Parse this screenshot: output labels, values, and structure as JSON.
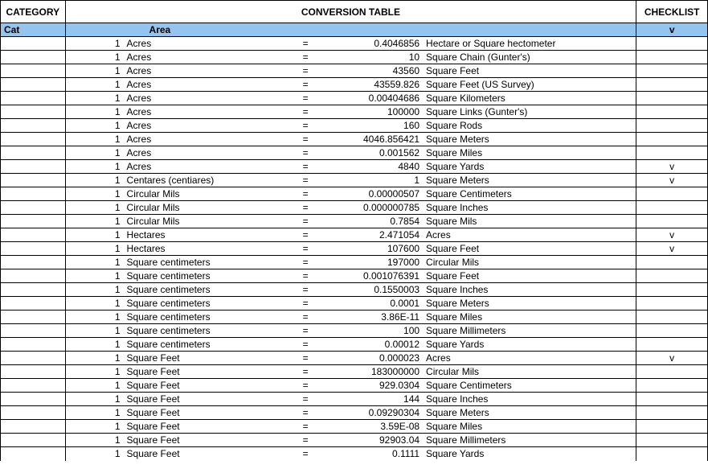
{
  "colors": {
    "header_bg": "#95c5ef",
    "border": "#000000",
    "bg": "#ffffff",
    "text": "#000000"
  },
  "header": {
    "category": "CATEGORY",
    "title": "CONVERSION TABLE",
    "checklist": "CHECKLIST"
  },
  "subheader": {
    "cat": "Cat",
    "area": "Area",
    "check": "v"
  },
  "columns": {
    "qty_width": 72,
    "from_width": 210,
    "eq_width": 30,
    "val_width": 130,
    "to_width": 264,
    "category_width": 80,
    "check_width": 88
  },
  "rows": [
    {
      "qty": "1",
      "from": "Acres",
      "eq": "=",
      "val": "0.4046856",
      "to": "Hectare or Square hectometer",
      "check": ""
    },
    {
      "qty": "1",
      "from": "Acres",
      "eq": "=",
      "val": "10",
      "to": "Square Chain (Gunter's)",
      "check": ""
    },
    {
      "qty": "1",
      "from": "Acres",
      "eq": "=",
      "val": "43560",
      "to": "Square Feet",
      "check": ""
    },
    {
      "qty": "1",
      "from": "Acres",
      "eq": "=",
      "val": "43559.826",
      "to": "Square Feet (US Survey)",
      "check": ""
    },
    {
      "qty": "1",
      "from": "Acres",
      "eq": "=",
      "val": "0.00404686",
      "to": "Square Kilometers",
      "check": ""
    },
    {
      "qty": "1",
      "from": "Acres",
      "eq": "=",
      "val": "100000",
      "to": "Square Links (Gunter's)",
      "check": ""
    },
    {
      "qty": "1",
      "from": "Acres",
      "eq": "=",
      "val": "160",
      "to": "Square Rods",
      "check": ""
    },
    {
      "qty": "1",
      "from": "Acres",
      "eq": "=",
      "val": "4046.856421",
      "to": "Square Meters",
      "check": ""
    },
    {
      "qty": "1",
      "from": "Acres",
      "eq": "=",
      "val": "0.001562",
      "to": "Square Miles",
      "check": ""
    },
    {
      "qty": "1",
      "from": "Acres",
      "eq": "=",
      "val": "4840",
      "to": "Square Yards",
      "check": "v"
    },
    {
      "qty": "1",
      "from": "Centares (centiares)",
      "eq": "=",
      "val": "1",
      "to": "Square Meters",
      "check": "v"
    },
    {
      "qty": "1",
      "from": "Circular Mils",
      "eq": "=",
      "val": "0.00000507",
      "to": "Square Centimeters",
      "check": ""
    },
    {
      "qty": "1",
      "from": "Circular Mils",
      "eq": "=",
      "val": "0.000000785",
      "to": "Square Inches",
      "check": ""
    },
    {
      "qty": "1",
      "from": "Circular Mils",
      "eq": "=",
      "val": "0.7854",
      "to": "Square Mils",
      "check": ""
    },
    {
      "qty": "1",
      "from": "Hectares",
      "eq": "=",
      "val": "2.471054",
      "to": "Acres",
      "check": "v"
    },
    {
      "qty": "1",
      "from": "Hectares",
      "eq": "=",
      "val": "107600",
      "to": "Square Feet",
      "check": "v"
    },
    {
      "qty": "1",
      "from": "Square centimeters",
      "eq": "=",
      "val": "197000",
      "to": "Circular Mils",
      "check": ""
    },
    {
      "qty": "1",
      "from": "Square centimeters",
      "eq": "=",
      "val": "0.001076391",
      "to": "Square Feet",
      "check": ""
    },
    {
      "qty": "1",
      "from": "Square centimeters",
      "eq": "=",
      "val": "0.1550003",
      "to": "Square Inches",
      "check": ""
    },
    {
      "qty": "1",
      "from": "Square centimeters",
      "eq": "=",
      "val": "0.0001",
      "to": "Square Meters",
      "check": ""
    },
    {
      "qty": "1",
      "from": "Square centimeters",
      "eq": "=",
      "val": "3.86E-11",
      "to": "Square Miles",
      "check": ""
    },
    {
      "qty": "1",
      "from": "Square centimeters",
      "eq": "=",
      "val": "100",
      "to": "Square Millimeters",
      "check": ""
    },
    {
      "qty": "1",
      "from": "Square centimeters",
      "eq": "=",
      "val": "0.00012",
      "to": "Square Yards",
      "check": ""
    },
    {
      "qty": "1",
      "from": "Square Feet",
      "eq": "=",
      "val": "0.000023",
      "to": "Acres",
      "check": "v"
    },
    {
      "qty": "1",
      "from": "Square Feet",
      "eq": "=",
      "val": "183000000",
      "to": "Circular Mils",
      "check": ""
    },
    {
      "qty": "1",
      "from": "Square Feet",
      "eq": "=",
      "val": "929.0304",
      "to": "Square Centimeters",
      "check": ""
    },
    {
      "qty": "1",
      "from": "Square Feet",
      "eq": "=",
      "val": "144",
      "to": "Square Inches",
      "check": ""
    },
    {
      "qty": "1",
      "from": "Square Feet",
      "eq": "=",
      "val": "0.09290304",
      "to": "Square Meters",
      "check": ""
    },
    {
      "qty": "1",
      "from": "Square Feet",
      "eq": "=",
      "val": "3.59E-08",
      "to": "Square Miles",
      "check": ""
    },
    {
      "qty": "1",
      "from": "Square Feet",
      "eq": "=",
      "val": "92903.04",
      "to": "Square Millimeters",
      "check": ""
    },
    {
      "qty": "1",
      "from": "Square Feet",
      "eq": "=",
      "val": "0.1111",
      "to": "Square Yards",
      "check": ""
    }
  ]
}
